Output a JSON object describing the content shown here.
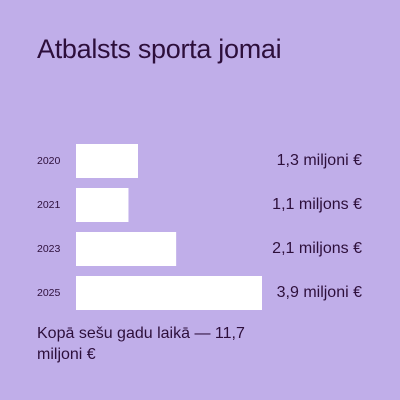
{
  "colors": {
    "background": "#c0aee9",
    "text": "#2d0f3b",
    "bar": "#ffffff"
  },
  "title": "Atbalsts sporta jomai",
  "footer": "Kopā sešu gadu laikā — 11,7 miljoni €",
  "chart_data": {
    "type": "bar",
    "orientation": "horizontal",
    "title": "Atbalsts sporta jomai",
    "categories": [
      "2020",
      "2021",
      "2023",
      "2025"
    ],
    "values": [
      1.3,
      1.1,
      2.1,
      3.9
    ],
    "unit": "miljoni €",
    "value_labels": [
      "1,3 miljoni €",
      "1,1 miljons €",
      "2,1 miljons €",
      "3,9 miljoni €"
    ],
    "bar_color": "#ffffff",
    "grid": false,
    "legend": "none",
    "xlabel": "",
    "ylabel": ""
  }
}
